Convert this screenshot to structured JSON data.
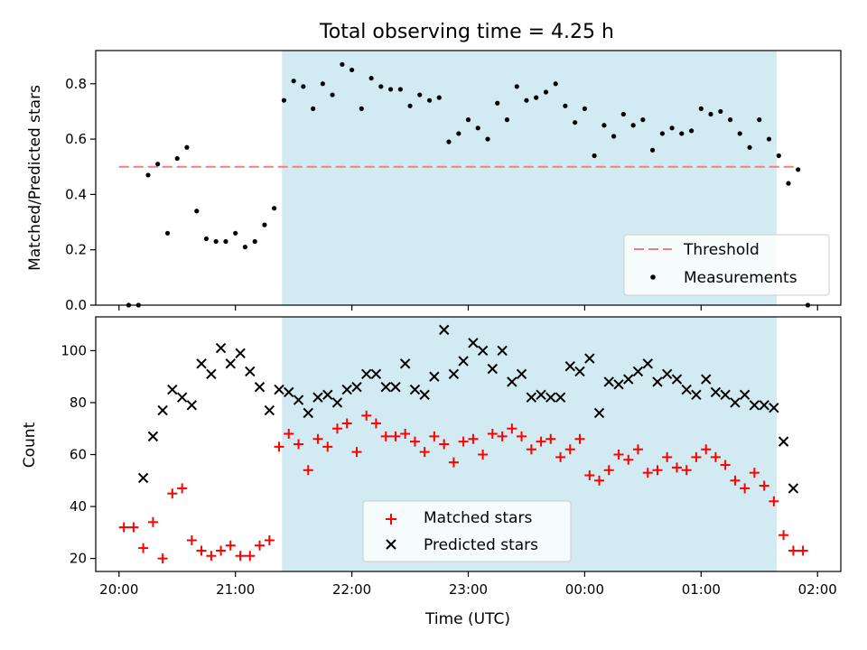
{
  "chart_data": {
    "title": "Total observing time = 4.25 h",
    "type": "scatter",
    "xlabel": "Time (UTC)",
    "x_ticks": [
      {
        "value": 20.0,
        "label": "20:00"
      },
      {
        "value": 21.0,
        "label": "21:00"
      },
      {
        "value": 22.0,
        "label": "22:00"
      },
      {
        "value": 23.0,
        "label": "23:00"
      },
      {
        "value": 24.0,
        "label": "00:00"
      },
      {
        "value": 25.0,
        "label": "01:00"
      },
      {
        "value": 26.0,
        "label": "02:00"
      }
    ],
    "xlim": [
      19.8,
      26.2
    ],
    "shaded_interval": {
      "start": 21.4,
      "end": 25.65,
      "color": "#add8e6"
    },
    "top": {
      "ylabel": "Matched/Predicted stars",
      "ylim": [
        0,
        0.92
      ],
      "y_ticks": [
        "0.0",
        "0.2",
        "0.4",
        "0.6",
        "0.8"
      ],
      "y_tick_values": [
        0,
        0.2,
        0.4,
        0.6,
        0.8
      ],
      "threshold": {
        "name": "Threshold",
        "value": 0.5,
        "x_range": [
          20.0,
          25.8
        ],
        "color": "#f08080"
      },
      "legend": [
        "Threshold",
        "Measurements"
      ],
      "legend_position": "lower right",
      "measurements": {
        "name": "Measurements",
        "color": "#000000",
        "x": [
          20.083,
          20.167,
          20.25,
          20.333,
          20.417,
          20.5,
          20.583,
          20.667,
          20.75,
          20.833,
          20.917,
          21.0,
          21.083,
          21.167,
          21.25,
          21.333,
          21.417,
          21.5,
          21.583,
          21.667,
          21.75,
          21.833,
          21.917,
          22.0,
          22.083,
          22.167,
          22.25,
          22.333,
          22.417,
          22.5,
          22.583,
          22.667,
          22.75,
          22.833,
          22.917,
          23.0,
          23.083,
          23.167,
          23.25,
          23.333,
          23.417,
          23.5,
          23.583,
          23.667,
          23.75,
          23.833,
          23.917,
          24.0,
          24.083,
          24.167,
          24.25,
          24.333,
          24.417,
          24.5,
          24.583,
          24.667,
          24.75,
          24.833,
          24.917,
          25.0,
          25.083,
          25.167,
          25.25,
          25.333,
          25.417,
          25.5,
          25.583,
          25.667,
          25.75,
          25.833,
          25.917
        ],
        "y": [
          0.0,
          0.0,
          0.47,
          0.51,
          0.26,
          0.53,
          0.57,
          0.34,
          0.24,
          0.23,
          0.23,
          0.26,
          0.21,
          0.23,
          0.29,
          0.35,
          0.74,
          0.81,
          0.79,
          0.71,
          0.8,
          0.76,
          0.87,
          0.85,
          0.71,
          0.82,
          0.79,
          0.78,
          0.78,
          0.72,
          0.76,
          0.74,
          0.75,
          0.59,
          0.62,
          0.67,
          0.64,
          0.6,
          0.73,
          0.67,
          0.79,
          0.74,
          0.75,
          0.77,
          0.8,
          0.72,
          0.66,
          0.71,
          0.54,
          0.65,
          0.61,
          0.69,
          0.65,
          0.67,
          0.56,
          0.62,
          0.64,
          0.62,
          0.63,
          0.71,
          0.69,
          0.7,
          0.67,
          0.62,
          0.57,
          0.67,
          0.6,
          0.54,
          0.44,
          0.49,
          0.0
        ]
      }
    },
    "bottom": {
      "ylabel": "Count",
      "ylim": [
        15,
        113
      ],
      "y_ticks": [
        "20",
        "40",
        "60",
        "80",
        "100"
      ],
      "y_tick_values": [
        20,
        40,
        60,
        80,
        100
      ],
      "legend": [
        "Matched stars",
        "Predicted stars"
      ],
      "legend_position": "lower center",
      "series": [
        {
          "name": "Matched stars",
          "marker": "+",
          "color": "#ff0000",
          "x": [
            20.042,
            20.125,
            20.208,
            20.292,
            20.375,
            20.458,
            20.542,
            20.625,
            20.708,
            20.792,
            20.875,
            20.958,
            21.042,
            21.125,
            21.208,
            21.292,
            21.375,
            21.458,
            21.542,
            21.625,
            21.708,
            21.792,
            21.875,
            21.958,
            22.042,
            22.125,
            22.208,
            22.292,
            22.375,
            22.458,
            22.542,
            22.625,
            22.708,
            22.792,
            22.875,
            22.958,
            23.042,
            23.125,
            23.208,
            23.292,
            23.375,
            23.458,
            23.542,
            23.625,
            23.708,
            23.792,
            23.875,
            23.958,
            24.042,
            24.125,
            24.208,
            24.292,
            24.375,
            24.458,
            24.542,
            24.625,
            24.708,
            24.792,
            24.875,
            24.958,
            25.042,
            25.125,
            25.208,
            25.292,
            25.375,
            25.458,
            25.542,
            25.625,
            25.708,
            25.792,
            25.875
          ],
          "values": [
            32,
            32,
            24,
            34,
            20,
            45,
            47,
            27,
            23,
            21,
            23,
            25,
            21,
            21,
            25,
            27,
            63,
            68,
            64,
            54,
            66,
            63,
            70,
            72,
            61,
            75,
            72,
            67,
            67,
            68,
            65,
            61,
            67,
            64,
            57,
            65,
            66,
            60,
            68,
            67,
            70,
            67,
            62,
            65,
            66,
            59,
            62,
            66,
            52,
            50,
            54,
            60,
            58,
            62,
            53,
            54,
            59,
            55,
            54,
            59,
            62,
            59,
            56,
            50,
            47,
            53,
            48,
            42,
            29,
            23,
            23
          ]
        },
        {
          "name": "Predicted stars",
          "marker": "x",
          "color": "#000000",
          "x": [
            20.208,
            20.292,
            20.375,
            20.458,
            20.542,
            20.625,
            20.708,
            20.792,
            20.875,
            20.958,
            21.042,
            21.125,
            21.208,
            21.292,
            21.375,
            21.458,
            21.542,
            21.625,
            21.708,
            21.792,
            21.875,
            21.958,
            22.042,
            22.125,
            22.208,
            22.292,
            22.375,
            22.458,
            22.542,
            22.625,
            22.708,
            22.792,
            22.875,
            22.958,
            23.042,
            23.125,
            23.208,
            23.292,
            23.375,
            23.458,
            23.542,
            23.625,
            23.708,
            23.792,
            23.875,
            23.958,
            24.042,
            24.125,
            24.208,
            24.292,
            24.375,
            24.458,
            24.542,
            24.625,
            24.708,
            24.792,
            24.875,
            24.958,
            25.042,
            25.125,
            25.208,
            25.292,
            25.375,
            25.458,
            25.542,
            25.625,
            25.708,
            25.792
          ],
          "values": [
            51,
            67,
            77,
            85,
            82,
            79,
            95,
            91,
            101,
            95,
            99,
            92,
            86,
            77,
            85,
            84,
            81,
            76,
            82,
            83,
            80,
            85,
            86,
            91,
            91,
            86,
            86,
            95,
            85,
            83,
            90,
            108,
            91,
            96,
            103,
            100,
            93,
            100,
            88,
            91,
            82,
            83,
            82,
            82,
            94,
            92,
            97,
            76,
            88,
            87,
            89,
            92,
            95,
            88,
            91,
            89,
            85,
            83,
            89,
            84,
            83,
            80,
            83,
            79,
            79,
            78,
            65,
            47
          ]
        }
      ]
    }
  }
}
